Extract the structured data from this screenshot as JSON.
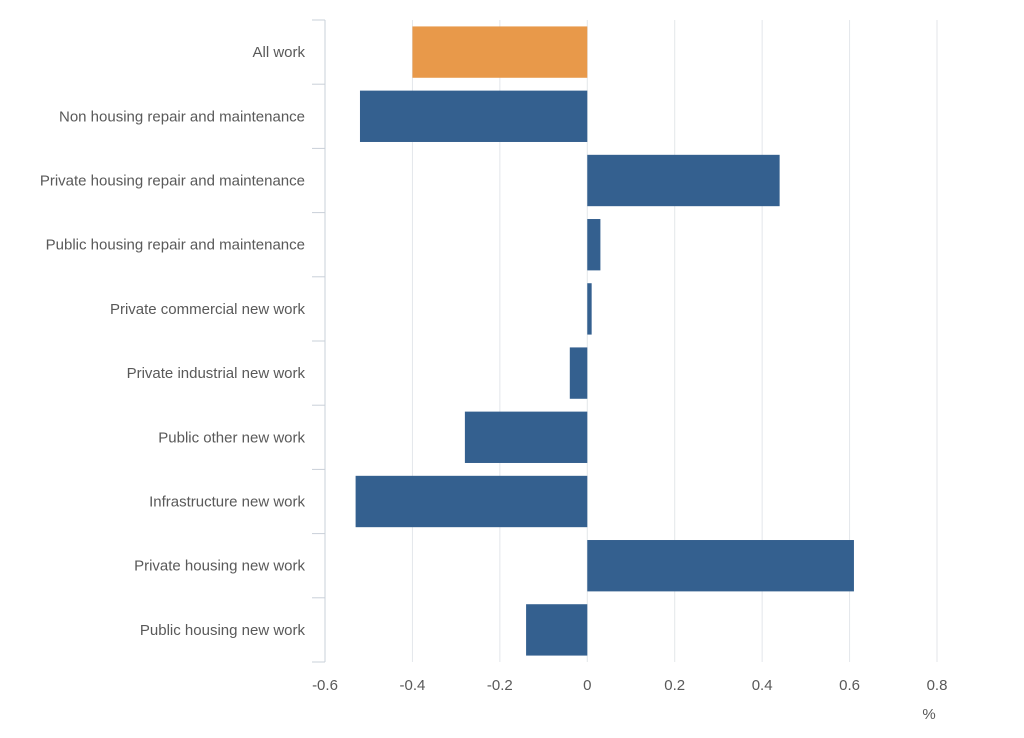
{
  "chart_data": {
    "type": "bar",
    "orientation": "horizontal",
    "categories": [
      "All work",
      "Non housing repair and maintenance",
      "Private housing repair and maintenance",
      "Public housing repair and maintenance",
      "Private commercial new work",
      "Private industrial new work",
      "Public other new work",
      "Infrastructure new work",
      "Private housing new work",
      "Public housing new work"
    ],
    "values": [
      -0.4,
      -0.52,
      0.44,
      0.03,
      0.01,
      -0.04,
      -0.28,
      -0.53,
      0.61,
      -0.14
    ],
    "highlight_index": 0,
    "colors": {
      "default": "#34608f",
      "highlight": "#e8994a",
      "grid": "#e3e6ea",
      "axis": "#c9d0d8",
      "text": "#595959"
    },
    "xticks": [
      "-0.6",
      "-0.4",
      "-0.2",
      "0",
      "0.2",
      "0.4",
      "0.6",
      "0.8"
    ],
    "xlim": [
      -0.6,
      0.8
    ],
    "xlabel": "%",
    "grid": true
  }
}
